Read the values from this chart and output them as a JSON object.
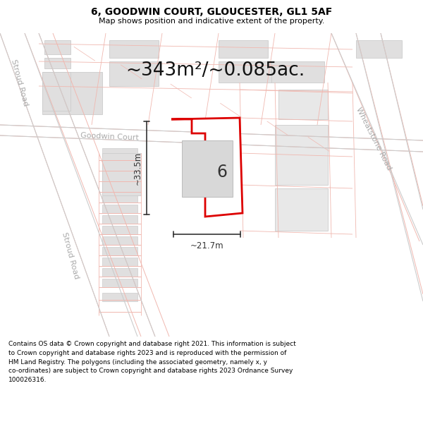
{
  "title": "6, GOODWIN COURT, GLOUCESTER, GL1 5AF",
  "subtitle": "Map shows position and indicative extent of the property.",
  "footer_text": "Contains OS data © Crown copyright and database right 2021. This information is subject\nto Crown copyright and database rights 2023 and is reproduced with the permission of\nHM Land Registry. The polygons (including the associated geometry, namely x, y\nco-ordinates) are subject to Crown copyright and database rights 2023 Ordnance Survey\n100026316.",
  "area_label": "~343m²/~0.085ac.",
  "width_label": "~21.7m",
  "height_label": "~33.5m",
  "plot_number": "6",
  "map_bg": "#fafafa",
  "road_line_color": "#f0b8b0",
  "road_fill_color": "#f5f0f0",
  "building_fill": "#e0dfdf",
  "building_edge": "#cccccc",
  "parcel_line": "#f0b8b0",
  "plot_fill": "#ffffff",
  "plot_edge": "#dd0000",
  "dim_color": "#333333",
  "title_color": "#000000",
  "road_label_color": "#aaaaaa",
  "stroud_road_label": "Stroud Road",
  "goodwin_label": "Goodwin Court",
  "wheatstone_label": "Wheatstone Road",
  "title_fontsize": 10,
  "subtitle_fontsize": 8,
  "footer_fontsize": 6.5,
  "area_fontsize": 19,
  "dim_fontsize": 8.5,
  "plot_label_fontsize": 17,
  "road_label_fontsize": 8
}
